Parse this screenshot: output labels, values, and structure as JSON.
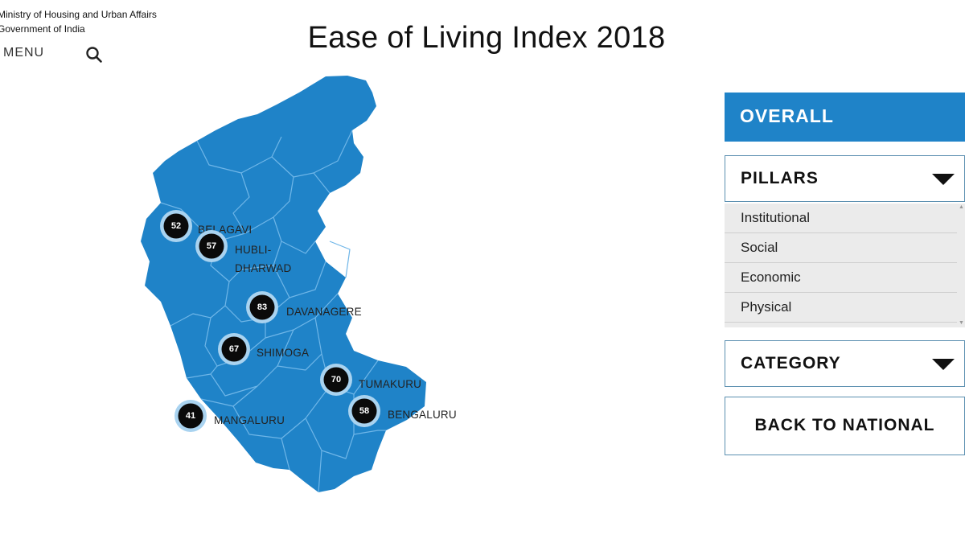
{
  "header": {
    "ministry_line1": "Ministry of Housing and Urban Affairs",
    "ministry_line2": "Government of India",
    "menu_label": "MENU",
    "title": "Ease of Living Index 2018"
  },
  "colors": {
    "map_fill": "#1f83c8",
    "district_border": "#6fb6e8",
    "marker": "#0a0a0a",
    "marker_ring": "#a9d3f0",
    "overall_bg": "#1f83c8"
  },
  "map": {
    "cities": [
      {
        "name": "BELAGAVI",
        "score": "52"
      },
      {
        "name": "HUBLI-",
        "name_line2": "DHARWAD",
        "score": "57"
      },
      {
        "name": "DAVANAGERE",
        "score": "83"
      },
      {
        "name": "SHIMOGA",
        "score": "67"
      },
      {
        "name": "TUMAKURU",
        "score": "70"
      },
      {
        "name": "BENGALURU",
        "score": "58"
      },
      {
        "name": "MANGALURU",
        "score": "41"
      }
    ]
  },
  "panel": {
    "overall_label": "OVERALL",
    "pillars_label": "PILLARS",
    "pillar_items": [
      "Institutional",
      "Social",
      "Economic",
      "Physical"
    ],
    "category_label": "CATEGORY",
    "back_label": "BACK TO NATIONAL"
  }
}
